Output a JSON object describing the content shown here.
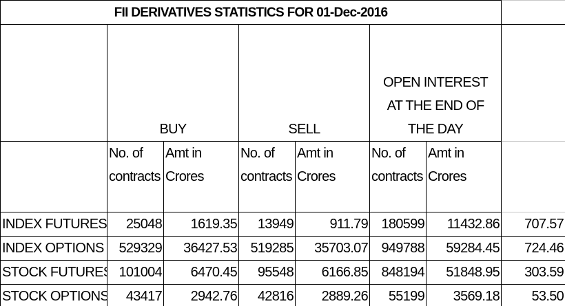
{
  "title": "FII DERIVATIVES STATISTICS FOR 01-Dec-2016",
  "column_groups": [
    "BUY",
    "SELL",
    "OPEN INTEREST AT THE END OF THE DAY"
  ],
  "subheaders": [
    "No. of contracts",
    "Amt in Crores",
    "No. of contracts",
    "Amt in Crores",
    "No. of contracts",
    "Amt in Crores"
  ],
  "rows": [
    [
      "INDEX FUTURES",
      "25048",
      "1619.35",
      "13949",
      "911.79",
      "180599",
      "11432.86",
      "707.57"
    ],
    [
      "INDEX OPTIONS",
      "529329",
      "36427.53",
      "519285",
      "35703.07",
      "949788",
      "59284.45",
      "724.46"
    ],
    [
      "STOCK FUTURES",
      "101004",
      "6470.45",
      "95548",
      "6166.85",
      "848194",
      "51848.95",
      "303.59"
    ],
    [
      "STOCK OPTIONS",
      "43417",
      "2942.76",
      "42816",
      "2889.26",
      "55199",
      "3569.18",
      "53.50"
    ]
  ]
}
